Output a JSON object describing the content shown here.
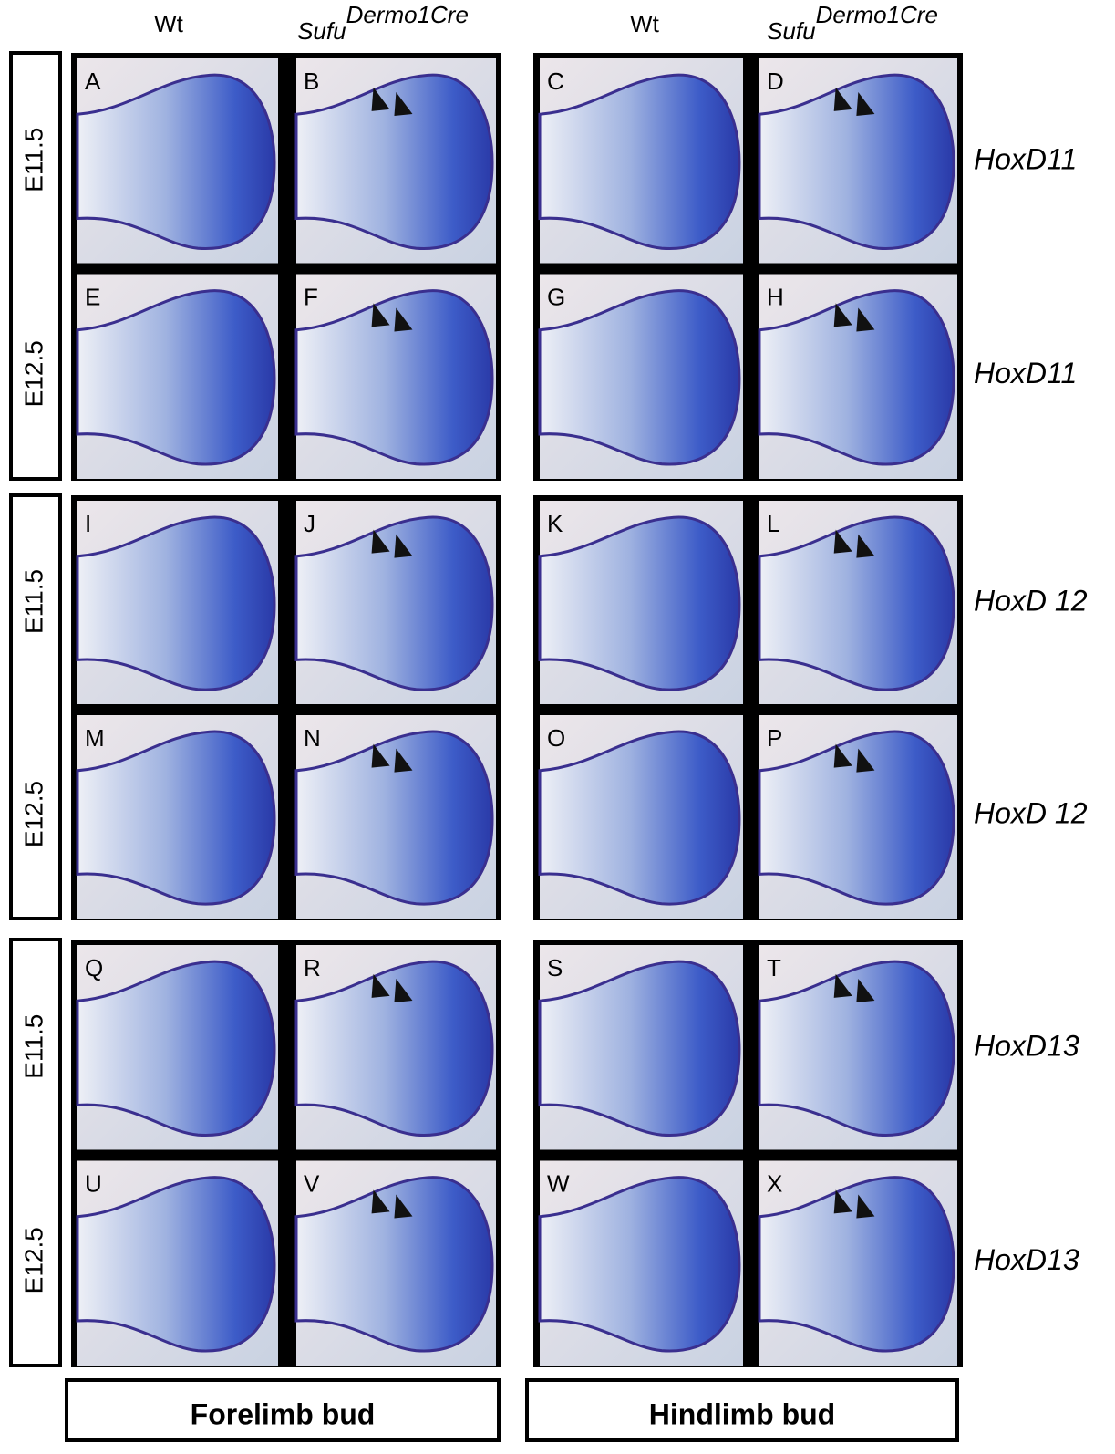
{
  "column_headers": [
    {
      "text": "Wt"
    },
    {
      "base": "Sufu",
      "sup": "Dermo1Cre"
    },
    {
      "text": "Wt"
    },
    {
      "base": "Sufu",
      "sup": "Dermo1Cre"
    }
  ],
  "row_labels": [
    "E11.5",
    "E12.5",
    "E11.5",
    "E12.5",
    "E11.5",
    "E12.5"
  ],
  "panels": [
    "A",
    "B",
    "C",
    "D",
    "E",
    "F",
    "G",
    "H",
    "I",
    "J",
    "K",
    "L",
    "M",
    "N",
    "O",
    "P",
    "Q",
    "R",
    "S",
    "T",
    "U",
    "V",
    "W",
    "X"
  ],
  "genes": [
    "HoxD11",
    "HoxD11",
    "HoxD 12",
    "HoxD 12",
    "HoxD13",
    "HoxD13"
  ],
  "footer": [
    "Forelimb bud",
    "Hindlimb bud"
  ]
}
